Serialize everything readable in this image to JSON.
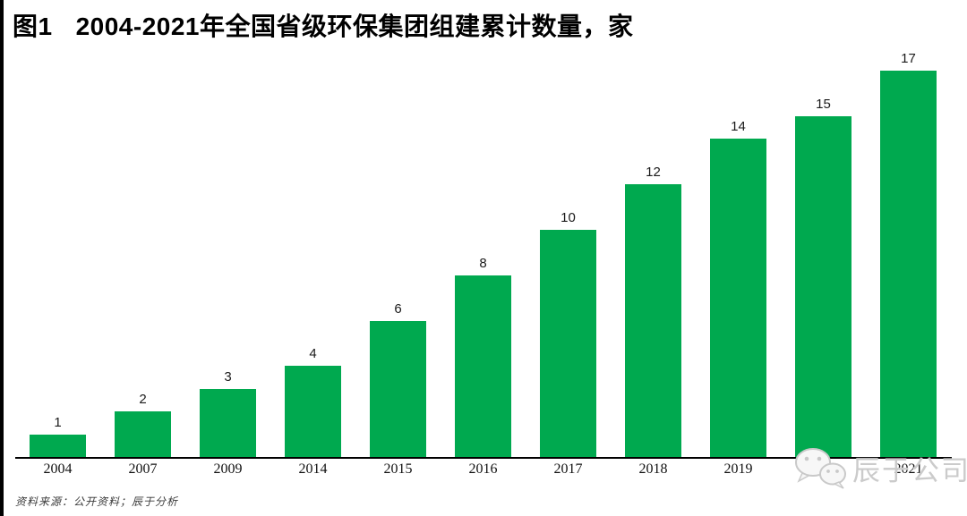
{
  "title": {
    "figure_label": "图1",
    "text": "2004-2021年全国省级环保集团组建累计数量，家"
  },
  "footer": {
    "source_note": "资料来源：公开资料；辰于分析"
  },
  "watermark": {
    "text": "辰于公司",
    "icon": "wechat-icon"
  },
  "colors": {
    "bar_green": "#00A94F",
    "axis_black": "#000000",
    "watermark_gray": "#cbcbcb",
    "label_dark": "#1a1a1a"
  },
  "chart_data": {
    "type": "bar",
    "title": "2004-2021年全国省级环保集团组建累计数量，家",
    "categories": [
      "2004",
      "2007",
      "2009",
      "2014",
      "2015",
      "2016",
      "2017",
      "2018",
      "2019",
      "2020",
      "2021"
    ],
    "values": [
      1,
      2,
      3,
      4,
      6,
      8,
      10,
      12,
      14,
      15,
      17
    ],
    "xlabel": "",
    "ylabel": "",
    "ylim": [
      0,
      18
    ],
    "gridlines": false,
    "y_axis": "hidden",
    "data_labels": "above-bars",
    "legend": "none"
  }
}
